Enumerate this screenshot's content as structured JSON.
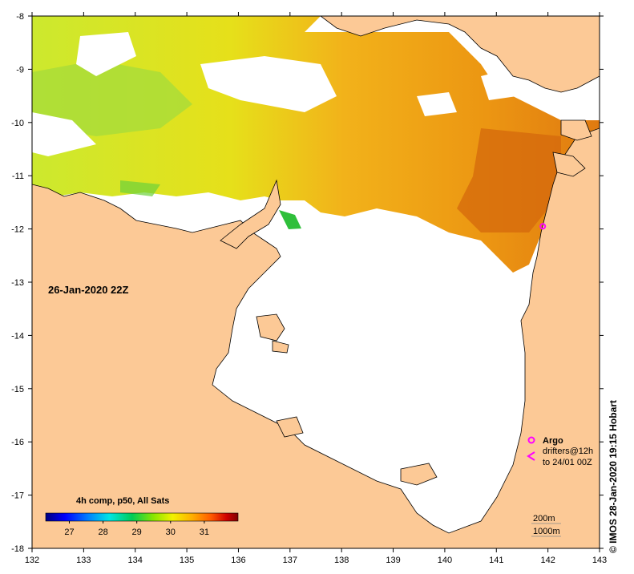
{
  "map": {
    "timestamp_label": "26-Jan-2020 22Z",
    "credit": "© IMOS 28-Jan-2020 19:15 Hobart",
    "lon_ticks": [
      132,
      133,
      134,
      135,
      136,
      137,
      138,
      139,
      140,
      141,
      142,
      143
    ],
    "lat_ticks": [
      -8,
      -9,
      -10,
      -11,
      -12,
      -13,
      -14,
      -15,
      -16,
      -17,
      -18
    ],
    "colorbar": {
      "title": "4h comp, p50, All Sats",
      "ticks": [
        27,
        28,
        29,
        30,
        31
      ],
      "range": [
        26.3,
        32
      ],
      "colors": [
        "#00007f",
        "#0000ff",
        "#007fff",
        "#00ffff",
        "#00cc66",
        "#7fff00",
        "#ffff00",
        "#ffaa00",
        "#ff5500",
        "#cc0000",
        "#7f0000"
      ]
    },
    "legend": {
      "argo_label": "Argo",
      "drifter_line1": "drifters@12h",
      "drifter_line2": "to 24/01 00Z",
      "argo_color": "#ff00ff",
      "drifter_color": "#ff00ff"
    },
    "depth_contours": [
      "200m",
      "1000m"
    ],
    "colors": {
      "land": "#fcc996",
      "no_data": "#ffffff",
      "sst_yellow_green": "#d8ea2a",
      "sst_orange": "#f0a818"
    },
    "markers": {
      "argo_floats": [
        {
          "lon": 141.9,
          "lat": -11.95
        }
      ]
    }
  }
}
